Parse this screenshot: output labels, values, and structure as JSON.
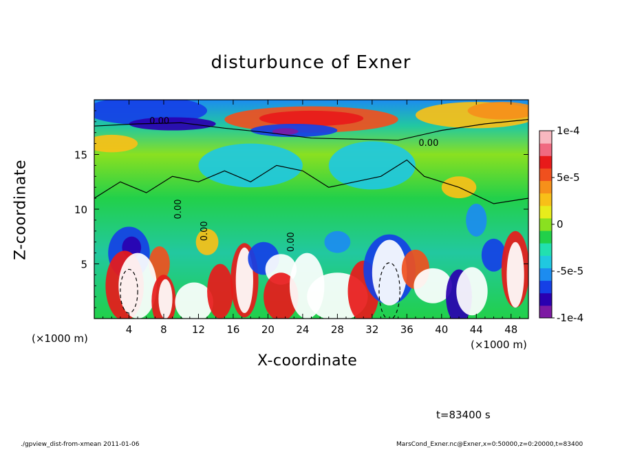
{
  "chart_data": {
    "type": "heatmap",
    "title": "disturbunce of Exner",
    "xlabel": "X-coordinate",
    "ylabel": "Z-coordinate",
    "x_unit": "(×1000 m)",
    "xlim": [
      0,
      50
    ],
    "ylim": [
      0,
      20
    ],
    "x_ticks": [
      4,
      8,
      12,
      16,
      20,
      24,
      28,
      32,
      36,
      40,
      44,
      48
    ],
    "y_ticks": [
      5,
      10,
      15
    ],
    "colorbar": {
      "range": [
        -0.0001,
        0.0001
      ],
      "tick_labels": [
        {
          "value": 0.0001,
          "label": "1e-4"
        },
        {
          "value": 5e-05,
          "label": "5e-5"
        },
        {
          "value": 0,
          "label": "0"
        },
        {
          "value": -5e-05,
          "label": "-5e-5"
        },
        {
          "value": -0.0001,
          "label": "-1e-4"
        }
      ],
      "colors": [
        "#7d1aa3",
        "#2a00b0",
        "#1540e6",
        "#1c8cf0",
        "#20c8e0",
        "#22e0b0",
        "#22d04a",
        "#8ae020",
        "#e8ec1c",
        "#f8c018",
        "#f6901a",
        "#f0501e",
        "#e81a1a",
        "#f06a80",
        "#f8b8c0"
      ]
    },
    "contour_labels": [
      "0.00",
      "0.00",
      "0.00",
      "0.00",
      "0.00"
    ],
    "time": "t=83400 s"
  },
  "footer": {
    "left": "./gpview_dist-from-xmean   2011-01-06",
    "right": "MarsCond_Exner.nc@Exner,x=0:50000,z=0:20000,t=83400"
  }
}
